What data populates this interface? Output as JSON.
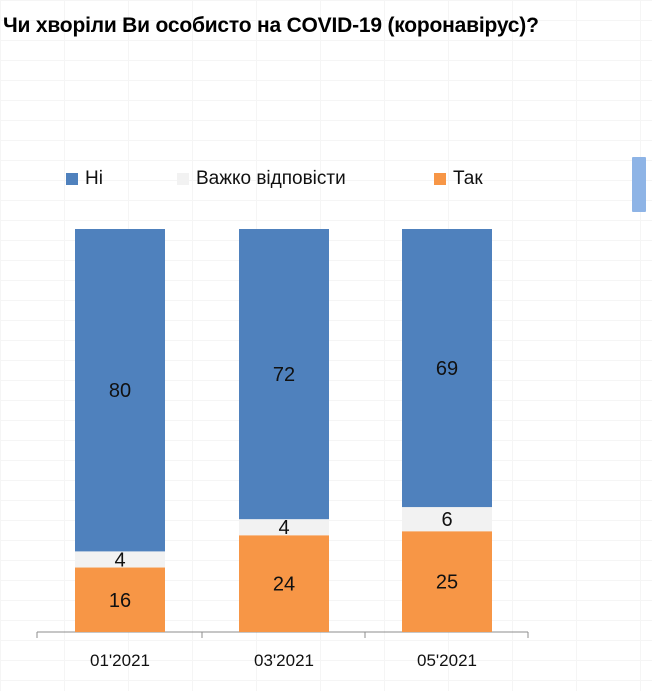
{
  "title": "Чи хворіли Ви особисто на COVID-19 (коронавірус)?",
  "chart_data": {
    "type": "bar",
    "stacked": true,
    "title": "Чи хворіли Ви особисто на COVID-19 (коронавірус)?",
    "categories": [
      "01'2021",
      "03'2021",
      "05'2021"
    ],
    "series": [
      {
        "name": "Так",
        "color": "#F79646",
        "values": [
          16,
          24,
          25
        ]
      },
      {
        "name": "Важко відповісти",
        "color": "#F2F2F2",
        "values": [
          4,
          4,
          6
        ]
      },
      {
        "name": "Ні",
        "color": "#4F81BD",
        "values": [
          80,
          72,
          69
        ]
      }
    ],
    "legend_order": [
      "Ні",
      "Важко відповісти",
      "Так"
    ],
    "legend_position": "top",
    "ylim": [
      0,
      100
    ],
    "grid": false,
    "data_labels": true
  }
}
